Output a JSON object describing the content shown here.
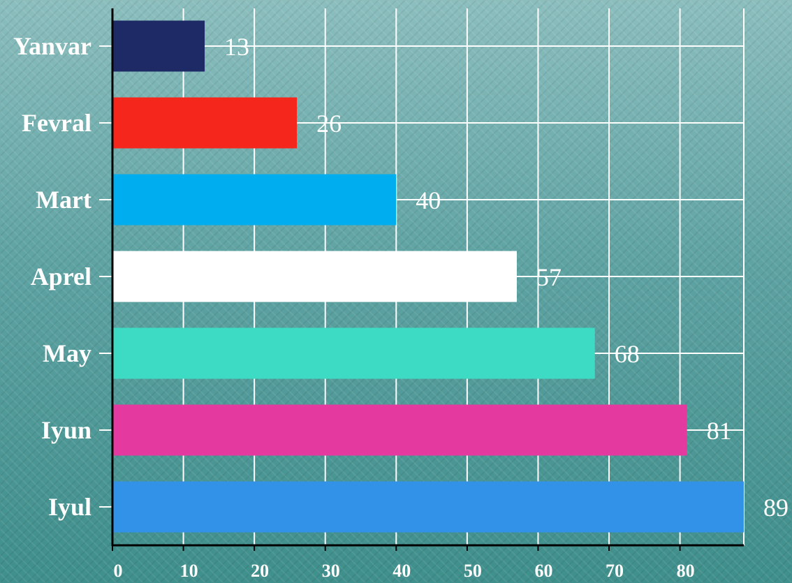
{
  "chart_data": {
    "type": "bar",
    "orientation": "horizontal",
    "categories": [
      "Yanvar",
      "Fevral",
      "Mart",
      "Aprel",
      "May",
      "Iyun",
      "Iyul"
    ],
    "values": [
      13,
      26,
      40,
      57,
      68,
      81,
      89
    ],
    "value_labels": [
      "13",
      "26",
      "40",
      "57",
      "68",
      "81",
      "89"
    ],
    "bar_colors": [
      "#1e2a66",
      "#f5261b",
      "#00aeef",
      "#ffffff",
      "#3ddbc4",
      "#e43a9f",
      "#3192e8"
    ],
    "x_ticks": [
      0,
      10,
      20,
      30,
      40,
      50,
      60,
      70,
      80
    ],
    "x_tick_labels": [
      "0",
      "10",
      "20",
      "30",
      "40",
      "50",
      "60",
      "70",
      "80"
    ],
    "xlim": [
      0,
      89
    ],
    "grid": true,
    "legend": "none",
    "title": "",
    "xlabel": "",
    "ylabel": ""
  }
}
